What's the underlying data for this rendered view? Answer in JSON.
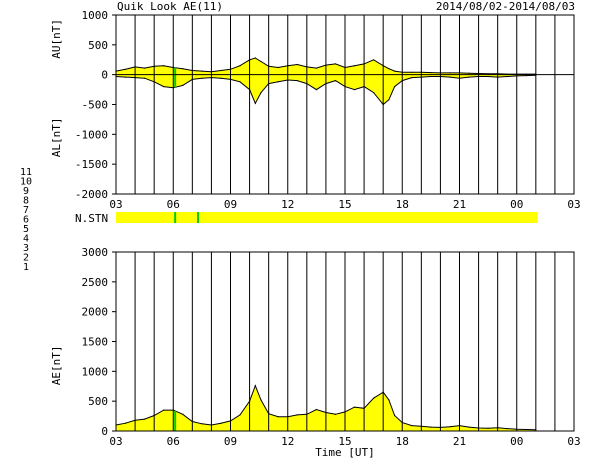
{
  "header": {
    "title": "Quik Look AE(11)",
    "date_range": "2014/08/02-2014/08/03"
  },
  "chart_data": [
    {
      "type": "area",
      "name": "AU/AL panel",
      "ylabel_top": "AU[nT]",
      "ylabel_bottom": "AL[nT]",
      "ylim": [
        -2000,
        1000
      ],
      "yticks": [
        "1000",
        "500",
        "0",
        "-500",
        "-1000",
        "-1500",
        "-2000"
      ],
      "ytick_values": [
        1000,
        500,
        0,
        -500,
        -1000,
        -1500,
        -2000
      ],
      "xlim": [
        3,
        27
      ],
      "xticks": [
        "03",
        "06",
        "09",
        "12",
        "15",
        "18",
        "21",
        "00",
        "03"
      ],
      "xtick_values": [
        3,
        6,
        9,
        12,
        15,
        18,
        21,
        24,
        27
      ],
      "grid": "vertical-hourly",
      "fill_color": "#ffff00",
      "line_color": "#000000",
      "series": [
        {
          "x": [
            3.0,
            3.5,
            4.0,
            4.5,
            5.0,
            5.5,
            6.0,
            6.5,
            7.0,
            7.5,
            8.0,
            8.5,
            9.0,
            9.5,
            10.0,
            10.3,
            10.6,
            11.0,
            11.5,
            12.0,
            12.5,
            13.0,
            13.5,
            14.0,
            14.5,
            15.0,
            15.5,
            16.0,
            16.5,
            17.0,
            17.3,
            17.6,
            18.0,
            18.5,
            19.0,
            19.5,
            20.0,
            20.5,
            21.0,
            21.5,
            22.0,
            22.5,
            23.0,
            23.5,
            24.0,
            24.5,
            25.0
          ],
          "values": [
            60,
            90,
            130,
            110,
            140,
            150,
            120,
            100,
            70,
            60,
            50,
            70,
            90,
            150,
            250,
            280,
            220,
            140,
            120,
            150,
            170,
            130,
            110,
            160,
            180,
            120,
            150,
            180,
            250,
            150,
            100,
            60,
            40,
            40,
            40,
            35,
            30,
            30,
            30,
            25,
            20,
            15,
            15,
            10,
            10,
            10,
            10
          ]
        },
        {
          "x": [
            3.0,
            3.5,
            4.0,
            4.5,
            5.0,
            5.5,
            6.0,
            6.5,
            7.0,
            7.5,
            8.0,
            8.5,
            9.0,
            9.5,
            10.0,
            10.3,
            10.6,
            11.0,
            11.5,
            12.0,
            12.5,
            13.0,
            13.5,
            14.0,
            14.5,
            15.0,
            15.5,
            16.0,
            16.5,
            17.0,
            17.3,
            17.6,
            18.0,
            18.5,
            19.0,
            19.5,
            20.0,
            20.5,
            21.0,
            21.5,
            22.0,
            22.5,
            23.0,
            23.5,
            24.0,
            24.5,
            25.0
          ],
          "values": [
            -30,
            -40,
            -50,
            -60,
            -120,
            -200,
            -220,
            -180,
            -80,
            -60,
            -50,
            -60,
            -80,
            -120,
            -250,
            -480,
            -300,
            -150,
            -120,
            -90,
            -100,
            -150,
            -250,
            -150,
            -100,
            -200,
            -250,
            -200,
            -300,
            -500,
            -420,
            -200,
            -100,
            -50,
            -40,
            -30,
            -30,
            -40,
            -60,
            -40,
            -30,
            -30,
            -40,
            -30,
            -20,
            -15,
            -10
          ]
        }
      ],
      "markers": [
        {
          "x": 6.1,
          "color": "#00cc00"
        }
      ]
    },
    {
      "type": "bar",
      "name": "N.STN strip",
      "label": "N.STN",
      "xlim": [
        3,
        27
      ],
      "fill_color": "#ffff00",
      "extent": [
        3.0,
        25.1
      ],
      "markers": [
        {
          "x": 6.1,
          "color": "#00cc00"
        },
        {
          "x": 7.3,
          "color": "#00cc00"
        }
      ]
    },
    {
      "type": "area",
      "name": "AE panel",
      "ylabel": "AE[nT]",
      "xlabel": "Time [UT]",
      "ylim": [
        0,
        3000
      ],
      "yticks": [
        "3000",
        "2500",
        "2000",
        "1500",
        "1000",
        "500",
        "0"
      ],
      "ytick_values": [
        3000,
        2500,
        2000,
        1500,
        1000,
        500,
        0
      ],
      "xlim": [
        3,
        27
      ],
      "xticks": [
        "03",
        "06",
        "09",
        "12",
        "15",
        "18",
        "21",
        "00",
        "03"
      ],
      "xtick_values": [
        3,
        6,
        9,
        12,
        15,
        18,
        21,
        24,
        27
      ],
      "grid": "vertical-hourly",
      "fill_color": "#ffff00",
      "line_color": "#000000",
      "series": [
        {
          "x": [
            3.0,
            3.5,
            4.0,
            4.5,
            5.0,
            5.5,
            6.0,
            6.5,
            7.0,
            7.5,
            8.0,
            8.5,
            9.0,
            9.5,
            10.0,
            10.3,
            10.6,
            11.0,
            11.5,
            12.0,
            12.5,
            13.0,
            13.5,
            14.0,
            14.5,
            15.0,
            15.5,
            16.0,
            16.5,
            17.0,
            17.3,
            17.6,
            18.0,
            18.5,
            19.0,
            19.5,
            20.0,
            20.5,
            21.0,
            21.5,
            22.0,
            22.5,
            23.0,
            23.5,
            24.0,
            24.5,
            25.0
          ],
          "values": [
            100,
            130,
            180,
            200,
            260,
            350,
            350,
            280,
            160,
            120,
            100,
            130,
            170,
            270,
            500,
            760,
            520,
            290,
            240,
            240,
            270,
            280,
            360,
            310,
            280,
            320,
            400,
            380,
            550,
            650,
            520,
            260,
            140,
            90,
            80,
            65,
            60,
            70,
            90,
            65,
            50,
            45,
            55,
            40,
            30,
            25,
            20
          ]
        }
      ],
      "markers": [
        {
          "x": 6.1,
          "color": "#00cc00"
        }
      ]
    }
  ],
  "station_legend": [
    {
      "label": "11",
      "color": "#00cccc"
    },
    {
      "label": "10",
      "color": "#cc00cc"
    },
    {
      "label": "9",
      "color": "#0000cc"
    },
    {
      "label": "8",
      "color": "#dddd00"
    },
    {
      "label": "7",
      "color": "#00cc00"
    },
    {
      "label": "6",
      "color": "#dd0000"
    },
    {
      "label": "5",
      "color": "#bbbbbb"
    },
    {
      "label": "4",
      "color": "#888888"
    },
    {
      "label": "3",
      "color": "#00aaaa"
    },
    {
      "label": "2",
      "color": "#aa00aa"
    },
    {
      "label": "1",
      "color": "#0000aa"
    }
  ]
}
